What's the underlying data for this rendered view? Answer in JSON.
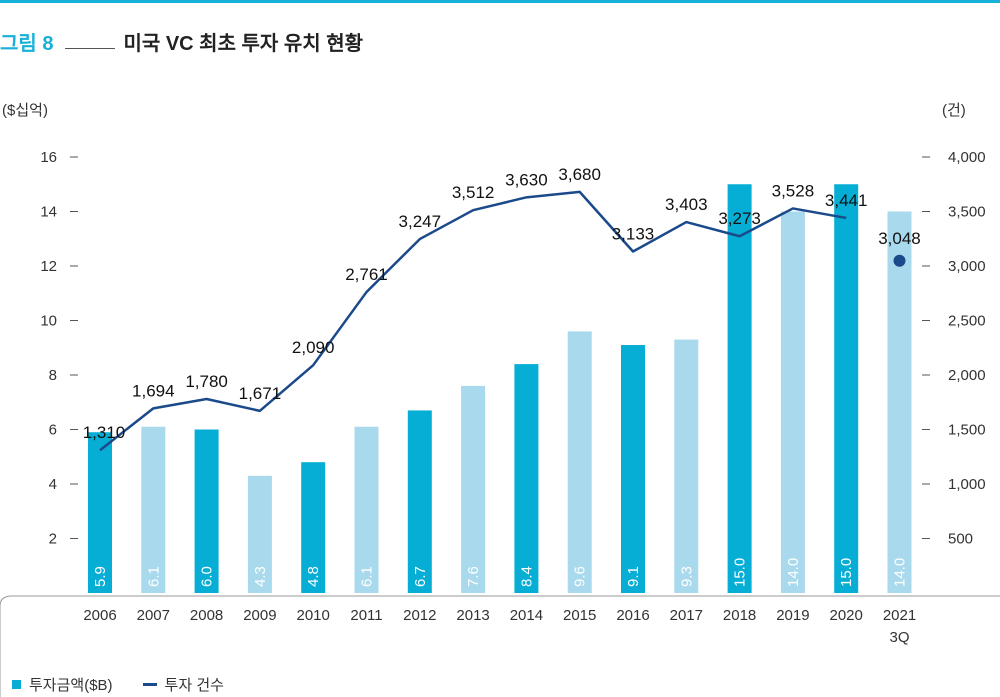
{
  "figure": {
    "number": "그림 8",
    "title": "미국 VC 최초 투자 유치 현황"
  },
  "legend": {
    "bar_label": "투자금액($B)",
    "line_label": "투자 건수"
  },
  "colors": {
    "bar_dark": "#06aed5",
    "bar_light": "#a9d9ec",
    "line": "#1b4a8a",
    "accent": "#17b0d8"
  },
  "chart_data": {
    "type": "bar",
    "categories": [
      "2006",
      "2007",
      "2008",
      "2009",
      "2010",
      "2011",
      "2012",
      "2013",
      "2014",
      "2015",
      "2016",
      "2017",
      "2018",
      "2019",
      "2020",
      "2021\n3Q"
    ],
    "series": [
      {
        "name": "투자금액($B)",
        "type": "bar",
        "axis": "left",
        "values": [
          5.9,
          6.1,
          6.0,
          4.3,
          4.8,
          6.1,
          6.7,
          7.6,
          8.4,
          9.6,
          9.1,
          9.3,
          15.0,
          14.0,
          15.0,
          14.0
        ],
        "labels": [
          "5.9",
          "6.1",
          "6.0",
          "4.3",
          "4.8",
          "6.1",
          "6.7",
          "7.6",
          "8.4",
          "9.6",
          "9.1",
          "9.3",
          "15.0",
          "14.0",
          "15.0",
          "14.0"
        ],
        "shade": [
          "dark",
          "light",
          "dark",
          "light",
          "dark",
          "light",
          "dark",
          "light",
          "dark",
          "light",
          "dark",
          "light",
          "dark",
          "light",
          "dark",
          "light"
        ]
      },
      {
        "name": "투자 건수",
        "type": "line",
        "axis": "right",
        "values": [
          1310,
          1694,
          1780,
          1671,
          2090,
          2761,
          3247,
          3512,
          3630,
          3680,
          3133,
          3403,
          3273,
          3528,
          3441,
          3048
        ],
        "labels": [
          "1,310",
          "1,694",
          "1,780",
          "1,671",
          "2,090",
          "2,761",
          "3,247",
          "3,512",
          "3,630",
          "3,680",
          "3,133",
          "3,403",
          "3,273",
          "3,528",
          "3,441",
          "3,048"
        ],
        "point_only_last": true
      }
    ],
    "ylabel_left": "($십억)",
    "ylabel_right": "(건)",
    "ylim_left": [
      0,
      16
    ],
    "ylim_right": [
      0,
      4000
    ],
    "yticks_left": [
      "2",
      "4",
      "6",
      "8",
      "10",
      "12",
      "14",
      "16"
    ],
    "yticks_right": [
      "500",
      "1,000",
      "1,500",
      "2,000",
      "2,500",
      "3,000",
      "3,500",
      "4,000"
    ],
    "grid": false,
    "legend_position": "bottom-left"
  }
}
